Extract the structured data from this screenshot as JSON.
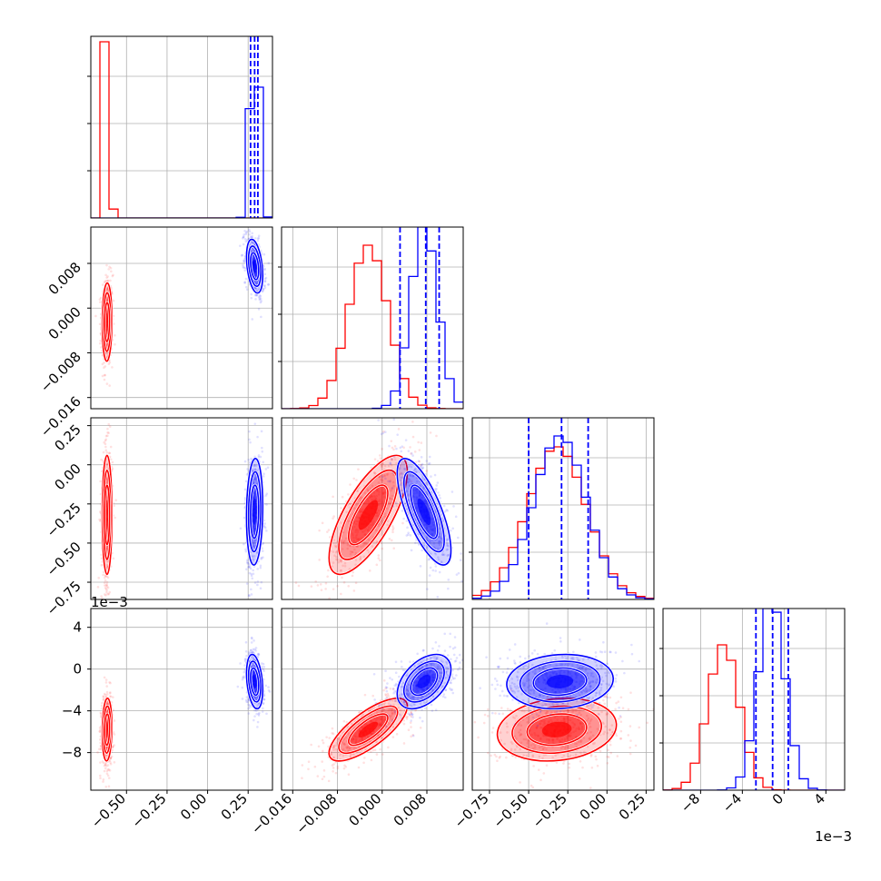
{
  "colors": {
    "series_a": "#ff0000",
    "series_b": "#0000ff",
    "grid": "#b0b0b0",
    "frame": "#000000"
  },
  "chart_data": {
    "type": "corner",
    "grid": true,
    "dims": [
      {
        "range": [
          -0.72,
          0.4
        ],
        "ticks": [
          -0.5,
          -0.25,
          0.0,
          0.25
        ],
        "tick_labels": [
          "−0.50",
          "−0.25",
          "0.00",
          "0.25"
        ],
        "scale_label": ""
      },
      {
        "range": [
          -0.018,
          0.0145
        ],
        "ticks": [
          -0.016,
          -0.008,
          0.0,
          0.008
        ],
        "tick_labels": [
          "−0.016",
          "−0.008",
          "0.000",
          "0.008"
        ],
        "scale_label": ""
      },
      {
        "range": [
          -0.86,
          0.3
        ],
        "ticks": [
          -0.75,
          -0.5,
          -0.25,
          0.0,
          0.25
        ],
        "tick_labels": [
          "−0.75",
          "−0.50",
          "−0.25",
          "0.00",
          "0.25"
        ],
        "scale_label": ""
      },
      {
        "range": [
          -0.0116,
          0.0058
        ],
        "ticks": [
          -0.008,
          -0.004,
          0.0,
          0.004
        ],
        "tick_labels": [
          "−8",
          "−4",
          "0",
          "4"
        ],
        "scale_label": "1e−3"
      }
    ],
    "series": [
      {
        "name": "",
        "color": "#ff0000",
        "dims": [
          {
            "mean": -0.62,
            "sd": 0.015,
            "rho_with_dim1": 0.05
          },
          {
            "mean": -0.0025,
            "sd": 0.0035
          },
          {
            "mean": -0.32,
            "sd": 0.19
          },
          {
            "mean": -0.0058,
            "sd": 0.0015
          }
        ],
        "hist_peaks": [
          0.97,
          0.9,
          0.84,
          0.8
        ],
        "hist_quantile_lines": []
      },
      {
        "name": "",
        "color": "#0000ff",
        "dims": [
          {
            "mean": 0.29,
            "sd": 0.025
          },
          {
            "mean": 0.0075,
            "sd": 0.0024
          },
          {
            "mean": -0.3,
            "sd": 0.17
          },
          {
            "mean": -0.0012,
            "sd": 0.0013
          }
        ],
        "hist_peaks": [
          0.72,
          1.0,
          0.9,
          1.0
        ],
        "hist_quantile_lines": [
          [
            0.265,
            0.29,
            0.31
          ],
          [
            0.0032,
            0.0078,
            0.0102
          ],
          [
            -0.5,
            -0.29,
            -0.12
          ],
          [
            -0.0027,
            -0.0011,
            0.0004
          ]
        ]
      }
    ],
    "pair_correlations": {
      "red": {
        "1-0": 0.05,
        "2-0": 0.0,
        "2-1": 0.72,
        "3-0": 0.1,
        "3-1": 0.75,
        "3-2": 0.15
      },
      "blue": {
        "1-0": -0.35,
        "2-0": 0.1,
        "2-1": -0.72,
        "3-0": -0.3,
        "3-1": 0.45,
        "3-2": 0.1
      }
    }
  }
}
